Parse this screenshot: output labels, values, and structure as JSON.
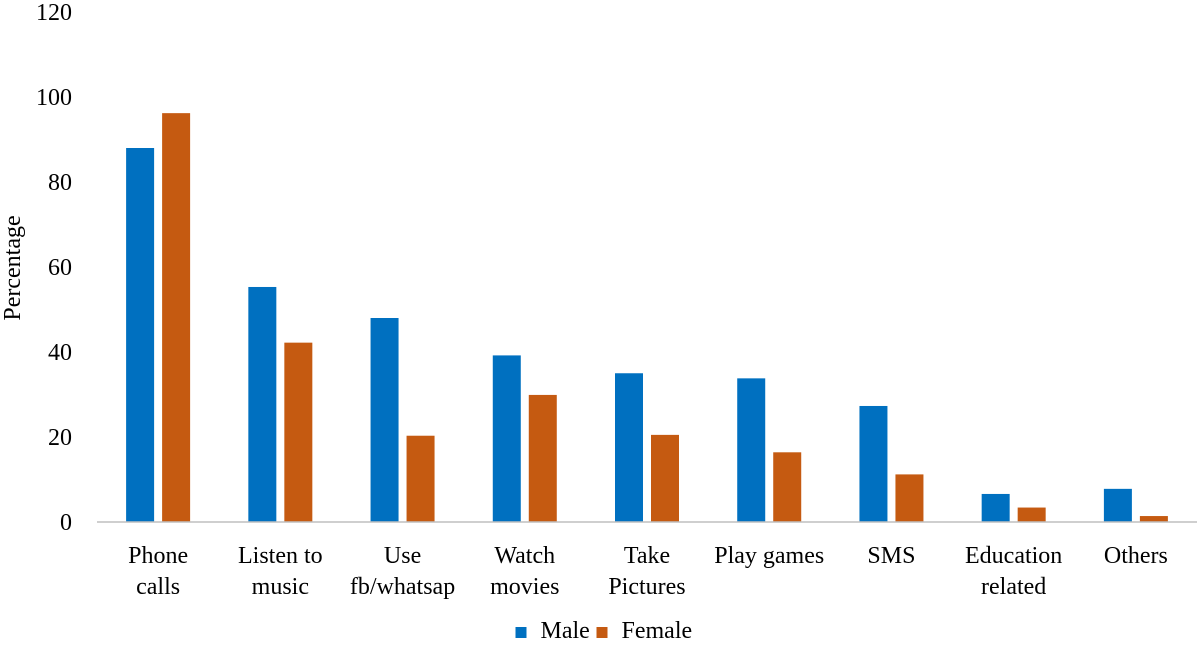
{
  "chart_data": {
    "type": "bar",
    "title": "",
    "xlabel": "",
    "ylabel": "Percentage",
    "ylim": [
      0,
      120
    ],
    "yticks": [
      0,
      20,
      40,
      60,
      80,
      100,
      120
    ],
    "grid": false,
    "legend_position": "bottom",
    "categories": [
      [
        "Phone",
        "calls"
      ],
      [
        "Listen to",
        "music"
      ],
      [
        "Use",
        "fb/whatsap"
      ],
      [
        "Watch",
        "movies"
      ],
      [
        "Take",
        "Pictures"
      ],
      [
        "Play games"
      ],
      [
        "SMS"
      ],
      [
        "Education",
        "related"
      ],
      [
        "Others"
      ]
    ],
    "series": [
      {
        "name": "Male",
        "color": "#0070C0",
        "values": [
          88,
          55.3,
          48,
          39.2,
          35,
          33.8,
          27.3,
          6.6,
          7.8
        ]
      },
      {
        "name": "Female",
        "color": "#C55A11",
        "values": [
          96.2,
          42.2,
          20.3,
          29.9,
          20.5,
          16.4,
          11.2,
          3.4,
          1.4
        ]
      }
    ]
  }
}
